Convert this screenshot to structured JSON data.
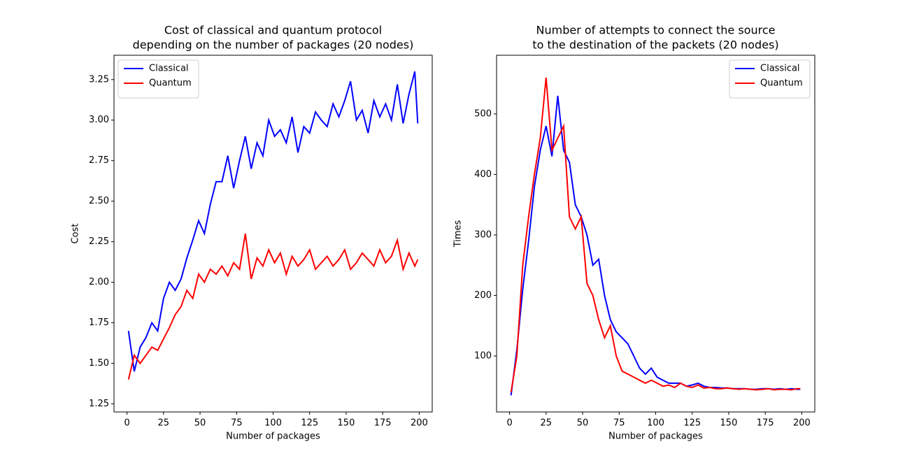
{
  "chart_data": [
    {
      "type": "line",
      "title": [
        "Cost of classical and quantum protocol",
        "depending on the number of packages (20 nodes)"
      ],
      "xlabel": "Number of packages",
      "ylabel": "Cost",
      "x": [
        1,
        5,
        9,
        13,
        17,
        21,
        25,
        29,
        33,
        37,
        41,
        45,
        49,
        53,
        57,
        61,
        65,
        69,
        73,
        77,
        81,
        85,
        89,
        93,
        97,
        101,
        105,
        109,
        113,
        117,
        121,
        125,
        129,
        133,
        137,
        141,
        145,
        149,
        153,
        157,
        161,
        165,
        169,
        173,
        177,
        181,
        185,
        189,
        193,
        197,
        199
      ],
      "series": [
        {
          "name": "Classical",
          "color": "#0000ff",
          "values": [
            1.7,
            1.45,
            1.6,
            1.66,
            1.75,
            1.7,
            1.9,
            2.0,
            1.95,
            2.02,
            2.15,
            2.26,
            2.38,
            2.3,
            2.48,
            2.62,
            2.62,
            2.78,
            2.58,
            2.75,
            2.9,
            2.7,
            2.86,
            2.78,
            3.0,
            2.9,
            2.94,
            2.86,
            3.02,
            2.8,
            2.96,
            2.92,
            3.05,
            3.0,
            2.96,
            3.1,
            3.02,
            3.12,
            3.24,
            3.0,
            3.06,
            2.92,
            3.12,
            3.02,
            3.1,
            3.0,
            3.22,
            2.98,
            3.16,
            3.3,
            2.98
          ]
        },
        {
          "name": "Quantum",
          "color": "#ff0000",
          "values": [
            1.4,
            1.55,
            1.5,
            1.55,
            1.6,
            1.58,
            1.65,
            1.72,
            1.8,
            1.85,
            1.95,
            1.9,
            2.05,
            2.0,
            2.08,
            2.05,
            2.1,
            2.04,
            2.12,
            2.08,
            2.3,
            2.02,
            2.15,
            2.1,
            2.2,
            2.12,
            2.18,
            2.05,
            2.16,
            2.1,
            2.14,
            2.2,
            2.08,
            2.12,
            2.16,
            2.1,
            2.14,
            2.2,
            2.08,
            2.12,
            2.18,
            2.14,
            2.1,
            2.2,
            2.12,
            2.16,
            2.26,
            2.08,
            2.18,
            2.1,
            2.14
          ]
        }
      ],
      "xlim": [
        -8.9,
        208.9
      ],
      "xticks": [
        0,
        25,
        50,
        75,
        100,
        125,
        150,
        175,
        200
      ],
      "ylim": [
        1.2,
        3.4
      ],
      "yticks": [
        1.25,
        {
          "value": 1.5,
          "label": "1.50"
        },
        1.75,
        {
          "value": 2.0,
          "label": "2.00"
        },
        2.25,
        {
          "value": 2.5,
          "label": "2.50"
        },
        2.75,
        {
          "value": 3.0,
          "label": "3.00"
        },
        3.25
      ],
      "legend": "upper left"
    },
    {
      "type": "line",
      "title": [
        "Number of attempts to connect the source",
        "to the destination of the packets (20 nodes)"
      ],
      "xlabel": "Number of packages",
      "ylabel": "Times",
      "x": [
        1,
        5,
        9,
        13,
        17,
        21,
        25,
        29,
        33,
        37,
        41,
        45,
        49,
        53,
        57,
        61,
        65,
        69,
        73,
        77,
        81,
        85,
        89,
        93,
        97,
        101,
        105,
        109,
        113,
        117,
        121,
        125,
        129,
        133,
        137,
        141,
        145,
        149,
        153,
        157,
        161,
        165,
        169,
        173,
        177,
        181,
        185,
        189,
        193,
        197,
        199
      ],
      "series": [
        {
          "name": "Classical",
          "color": "#0000ff",
          "values": [
            35,
            110,
            210,
            290,
            380,
            440,
            480,
            430,
            530,
            440,
            420,
            350,
            330,
            300,
            250,
            260,
            200,
            160,
            140,
            130,
            120,
            100,
            80,
            70,
            80,
            65,
            60,
            55,
            55,
            55,
            50,
            52,
            55,
            50,
            48,
            48,
            47,
            47,
            46,
            46,
            46,
            45,
            45,
            46,
            46,
            45,
            46,
            45,
            46,
            45,
            45
          ]
        },
        {
          "name": "Quantum",
          "color": "#ff0000",
          "values": [
            40,
            100,
            250,
            330,
            400,
            460,
            560,
            440,
            460,
            480,
            330,
            310,
            330,
            220,
            200,
            160,
            130,
            150,
            100,
            75,
            70,
            65,
            60,
            55,
            60,
            55,
            50,
            52,
            48,
            55,
            50,
            48,
            52,
            47,
            48,
            46,
            46,
            47,
            46,
            45,
            46,
            45,
            44,
            45,
            46,
            44,
            45,
            45,
            44,
            46,
            46
          ]
        }
      ],
      "xlim": [
        -8.9,
        208.9
      ],
      "xticks": [
        0,
        25,
        50,
        75,
        100,
        125,
        150,
        175,
        200
      ],
      "ylim": [
        7.5,
        597
      ],
      "yticks": [
        100,
        200,
        300,
        400,
        500
      ],
      "legend": "upper right"
    }
  ]
}
